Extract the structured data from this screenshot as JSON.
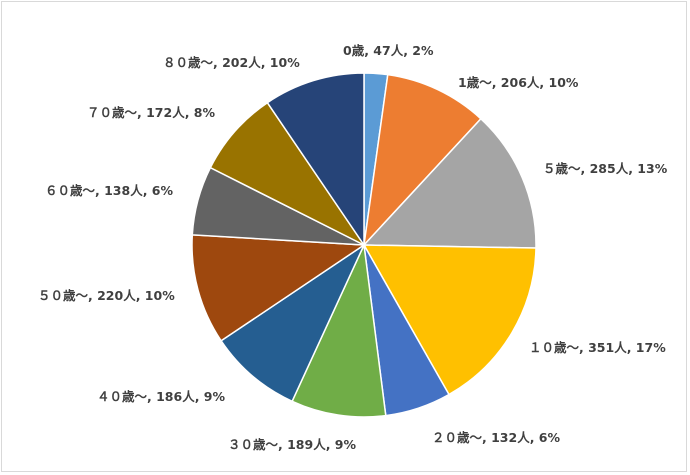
{
  "chart_data": {
    "type": "pie",
    "title": "",
    "legend": "none",
    "slices": [
      {
        "category": "0歳",
        "count_label": "47人",
        "value": 47,
        "percent_label": "2%",
        "color": "#5B9BD5"
      },
      {
        "category": "1歳～",
        "count_label": "206人",
        "value": 206,
        "percent_label": "10%",
        "color": "#ED7D31"
      },
      {
        "category": "５歳～",
        "count_label": "285人",
        "value": 285,
        "percent_label": "13%",
        "color": "#A5A5A5"
      },
      {
        "category": "１０歳～",
        "count_label": "351人",
        "value": 351,
        "percent_label": "17%",
        "color": "#FFC000"
      },
      {
        "category": "２０歳～",
        "count_label": "132人",
        "value": 132,
        "percent_label": "6%",
        "color": "#4472C4"
      },
      {
        "category": "３０歳～",
        "count_label": "189人",
        "value": 189,
        "percent_label": "9%",
        "color": "#70AD47"
      },
      {
        "category": "４０歳～",
        "count_label": "186人",
        "value": 186,
        "percent_label": "9%",
        "color": "#255E91"
      },
      {
        "category": "５０歳～",
        "count_label": "220人",
        "value": 220,
        "percent_label": "10%",
        "color": "#9E480E"
      },
      {
        "category": "６０歳～",
        "count_label": "138人",
        "value": 138,
        "percent_label": "6%",
        "color": "#636363"
      },
      {
        "category": "７０歳～",
        "count_label": "172人",
        "value": 172,
        "percent_label": "8%",
        "color": "#997300"
      },
      {
        "category": "８０歳～",
        "count_label": "202人",
        "value": 202,
        "percent_label": "10%",
        "color": "#264478"
      }
    ]
  }
}
